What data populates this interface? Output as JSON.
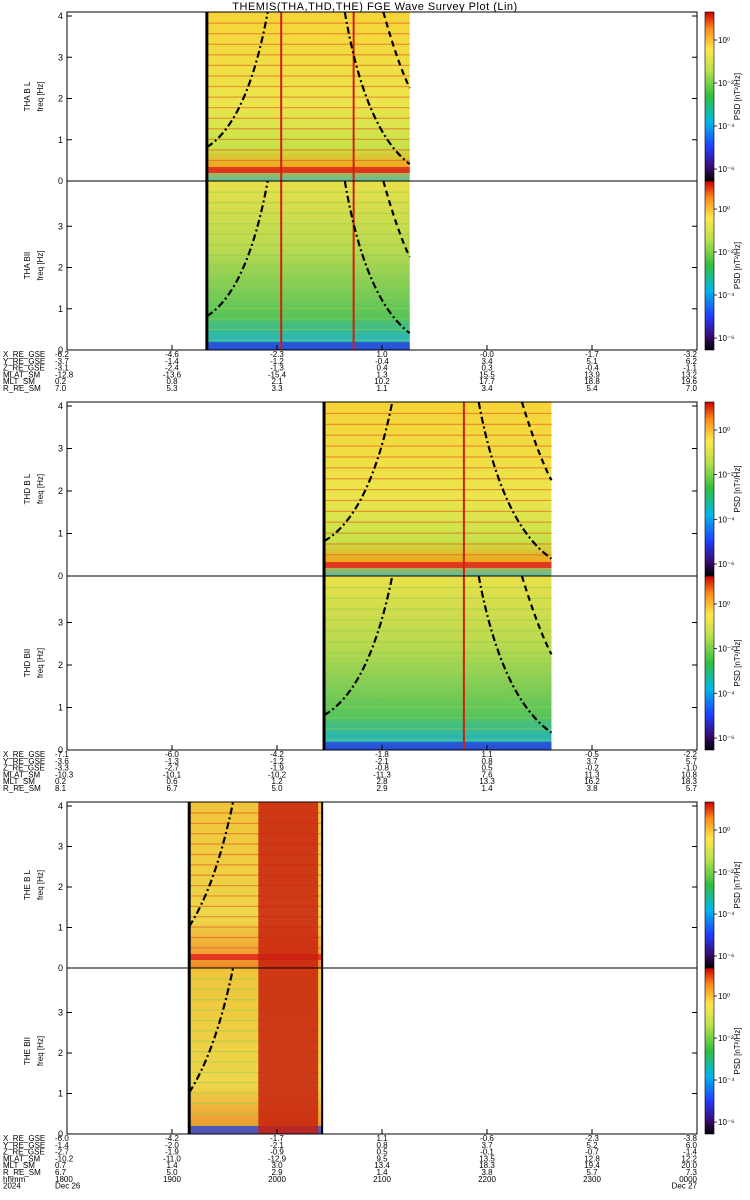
{
  "title": "THEMIS(THA,THD,THE) FGE Wave Survey Plot (Lin)",
  "colorbar_label": "PSD [nT²/Hz]",
  "colorbar_ticks": [
    "10⁰",
    "10⁻²",
    "10⁻⁴",
    "10⁻⁶"
  ],
  "colors": {
    "background": "#ffffff",
    "axis": "#000000",
    "spectrum_hi": "#d8140a",
    "spectrum_mid": "#f5e94a",
    "spectrum_lo": "#36b04a"
  },
  "panels": [
    {
      "id": "tha-b-l",
      "ylabel": "THA B L",
      "yunit": "freq [Hz]",
      "y_ticks": [
        "0",
        "1",
        "2",
        "3",
        "4"
      ],
      "data_start": 0.222,
      "data_end": 0.544
    },
    {
      "id": "tha-b-ll",
      "ylabel": "THA BII",
      "yunit": "freq [Hz]",
      "y_ticks": [
        "0",
        "1",
        "2",
        "3"
      ],
      "data_start": 0.222,
      "data_end": 0.544
    },
    {
      "id": "thd-b-l",
      "ylabel": "THD B L",
      "yunit": "freq [Hz]",
      "y_ticks": [
        "0",
        "1",
        "2",
        "3",
        "4"
      ],
      "data_start": 0.408,
      "data_end": 0.769
    },
    {
      "id": "thd-b-ll",
      "ylabel": "THD BII",
      "yunit": "freq [Hz]",
      "y_ticks": [
        "0",
        "1",
        "2",
        "3"
      ],
      "data_start": 0.408,
      "data_end": 0.769
    },
    {
      "id": "the-b-l",
      "ylabel": "THE B L",
      "yunit": "freq [Hz]",
      "y_ticks": [
        "0",
        "1",
        "2",
        "3",
        "4"
      ],
      "data_start": 0.194,
      "data_end": 0.405
    },
    {
      "id": "the-b-ll",
      "ylabel": "THE BII",
      "yunit": "freq [Hz]",
      "y_ticks": [
        "0",
        "1",
        "2",
        "3"
      ],
      "data_start": 0.194,
      "data_end": 0.405
    }
  ],
  "orbit_blocks": [
    {
      "rows": [
        {
          "label": "X_RE_GSE",
          "values": [
            "-6.2",
            "-4.6",
            "-2.3",
            "1.0",
            "-0.0",
            "-1.7",
            "-3.2"
          ]
        },
        {
          "label": "Y_RE_GSE",
          "values": [
            "-3.7",
            "-1.4",
            "-1.2",
            "-0.4",
            "3.4",
            "5.1",
            "6.2"
          ]
        },
        {
          "label": "Z_RE_GSE",
          "values": [
            "-3.1",
            "-2.4",
            "-1.3",
            "0.4",
            "0.3",
            "-0.4",
            "-1.1"
          ]
        },
        {
          "label": "MLAT_SM",
          "values": [
            "-12.8",
            "-13.6",
            "-15.4",
            "1.3",
            "15.5",
            "13.9",
            "13.2"
          ]
        },
        {
          "label": "MLT_SM",
          "values": [
            "0.2",
            "0.8",
            "2.1",
            "10.2",
            "17.7",
            "18.8",
            "19.6"
          ]
        },
        {
          "label": "R_RE_SM",
          "values": [
            "7.0",
            "5.3",
            "3.3",
            "1.1",
            "3.4",
            "5.4",
            "7.0"
          ]
        }
      ]
    },
    {
      "rows": [
        {
          "label": "X_RE_GSE",
          "values": [
            "-7.1",
            "-6.0",
            "-4.2",
            "-1.8",
            "1.1",
            "-0.5",
            "-2.2"
          ]
        },
        {
          "label": "Y_RE_GSE",
          "values": [
            "-3.6",
            "-1.3",
            "-1.2",
            "-2.1",
            "0.8",
            "3.7",
            "5.7"
          ]
        },
        {
          "label": "Z_RE_GSE",
          "values": [
            "-3.3",
            "-2.7",
            "-1.9",
            "-0.8",
            "0.5",
            "-0.2",
            "-1.0"
          ]
        },
        {
          "label": "MLAT_SM",
          "values": [
            "-10.3",
            "-10.1",
            "-10.2",
            "-11.3",
            "7.6",
            "11.3",
            "10.8"
          ]
        },
        {
          "label": "MLT_SM",
          "values": [
            "0.2",
            "0.6",
            "1.2",
            "2.8",
            "13.3",
            "16.2",
            "18.3"
          ]
        },
        {
          "label": "R_RE_SM",
          "values": [
            "8.1",
            "6.7",
            "5.0",
            "2.9",
            "1.4",
            "3.8",
            "5.7"
          ]
        }
      ]
    },
    {
      "rows": [
        {
          "label": "X_RE_GSE",
          "values": [
            "-6.0",
            "-4.2",
            "-1.7",
            "1.1",
            "-0.6",
            "-2.3",
            "-3.8"
          ]
        },
        {
          "label": "Y_RE_GSE",
          "values": [
            "-1.4",
            "-2.0",
            "-2.1",
            "0.8",
            "3.7",
            "5.2",
            "6.0"
          ]
        },
        {
          "label": "Z_RE_GSE",
          "values": [
            "-2.7",
            "-1.9",
            "-0.9",
            "0.5",
            "-0.1",
            "-0.7",
            "-1.4"
          ]
        },
        {
          "label": "MLAT_SM",
          "values": [
            "-10.2",
            "-11.0",
            "-12.9",
            "9.5",
            "13.5",
            "12.8",
            "12.2"
          ]
        },
        {
          "label": "MLT_SM",
          "values": [
            "0.7",
            "1.4",
            "3.0",
            "13.4",
            "18.3",
            "19.4",
            "20.0"
          ]
        },
        {
          "label": "R_RE_SM",
          "values": [
            "6.7",
            "5.0",
            "2.9",
            "1.4",
            "3.8",
            "5.7",
            "7.3"
          ]
        },
        {
          "label": "hhmm",
          "values": [
            "1800",
            "1900",
            "2000",
            "2100",
            "2200",
            "2300",
            "0000"
          ]
        },
        {
          "label": "2024",
          "values": [
            "Dec 26",
            "",
            "",
            "",
            "",
            "",
            "Dec 27"
          ]
        }
      ]
    }
  ],
  "chart_data": [
    {
      "type": "heatmap",
      "title": "THEMIS(THA,THD,THE) FGE Wave Survey Plot (Lin)",
      "xlabel": "hhmm",
      "x_ticks": [
        "1800",
        "1900",
        "2000",
        "2100",
        "2200",
        "2300",
        "0000"
      ],
      "date_labels": [
        "Dec 26",
        "Dec 27"
      ],
      "ylabel": "freq [Hz]",
      "ylim": [
        0,
        4
      ],
      "colorscale": "log",
      "colorbar_label": "PSD [nT²/Hz]",
      "colorbar_ticks": [
        "10⁰",
        "10⁻²",
        "10⁻⁴",
        "10⁻⁶"
      ],
      "series": [
        {
          "name": "THA B L"
        },
        {
          "name": "THA BII"
        },
        {
          "name": "THD B L"
        },
        {
          "name": "THD BII"
        },
        {
          "name": "THE B L"
        },
        {
          "name": "THE BII"
        }
      ]
    }
  ]
}
